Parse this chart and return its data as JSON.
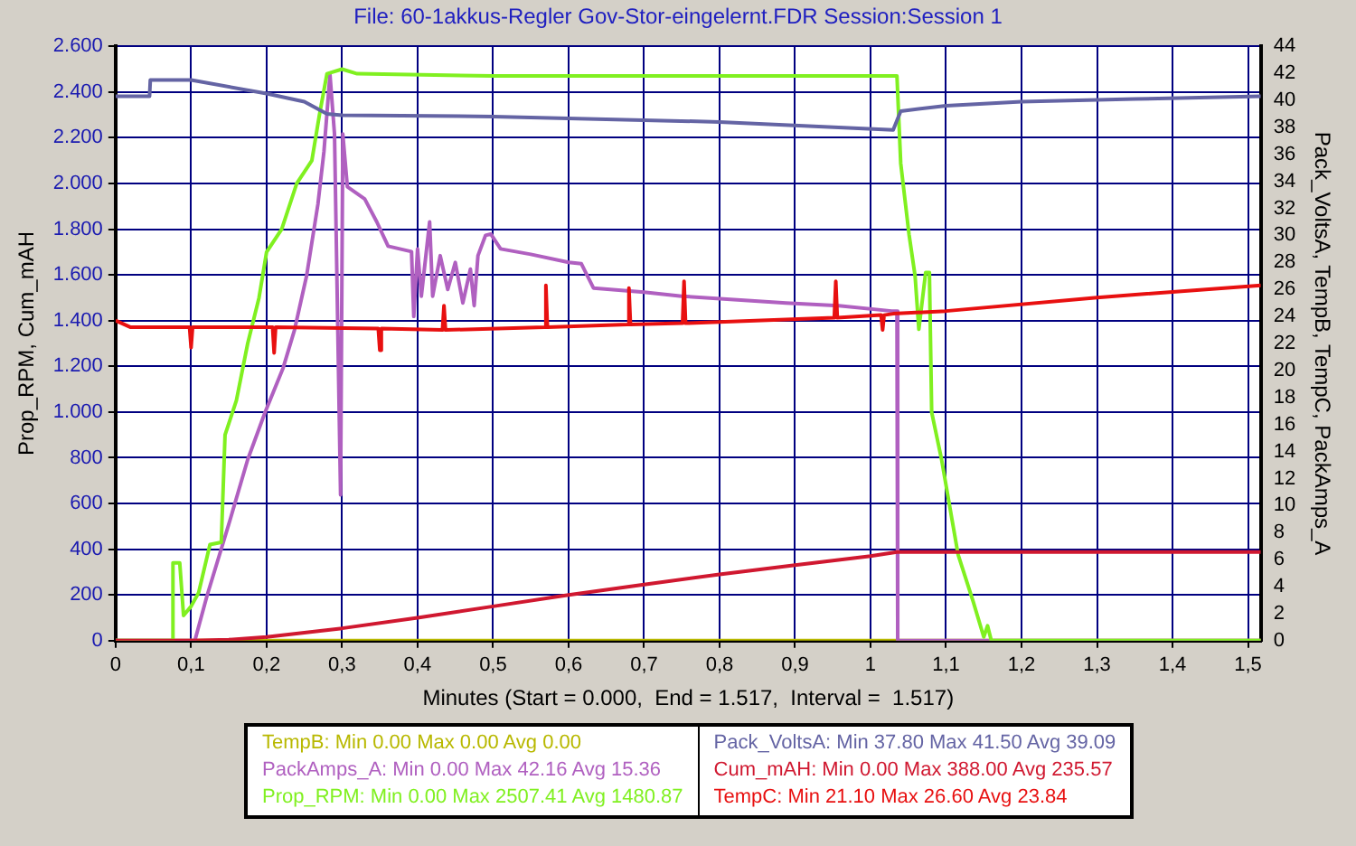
{
  "chart_data": {
    "type": "line",
    "title": "File: 60-1akkus-Regler Gov-Stor-eingelernt.FDR   Session:Session 1",
    "xlabel": "Minutes (Start = 0.000,  End = 1.517,  Interval =  1.517)",
    "ylabel": "Prop_RPM, Cum_mAH",
    "y2label": "Pack_VoltsA, TempB, TempC, PackAmps_A",
    "xlim": [
      0,
      1.517
    ],
    "xticks": [
      0,
      {
        "value": 0.1,
        "label": "0,1"
      },
      {
        "value": 0.2,
        "label": "0,2"
      },
      {
        "value": 0.3,
        "label": "0,3"
      },
      {
        "value": 0.4,
        "label": "0,4"
      },
      {
        "value": 0.5,
        "label": "0,5"
      },
      {
        "value": 0.6,
        "label": "0,6"
      },
      {
        "value": 0.7,
        "label": "0,7"
      },
      {
        "value": 0.8,
        "label": "0,8"
      },
      {
        "value": 0.9,
        "label": "0,9"
      },
      1,
      {
        "value": 1.1,
        "label": "1,1"
      },
      {
        "value": 1.2,
        "label": "1,2"
      },
      {
        "value": 1.3,
        "label": "1,3"
      },
      {
        "value": 1.4,
        "label": "1,4"
      },
      {
        "value": 1.5,
        "label": "1,5"
      }
    ],
    "ylim": [
      0,
      2600
    ],
    "yticks": [
      0,
      200,
      400,
      600,
      800,
      {
        "value": 1000,
        "label": "1.000"
      },
      {
        "value": 1200,
        "label": "1.200"
      },
      {
        "value": 1400,
        "label": "1.400"
      },
      {
        "value": 1600,
        "label": "1.600"
      },
      {
        "value": 1800,
        "label": "1.800"
      },
      {
        "value": 2000,
        "label": "2.000"
      },
      {
        "value": 2200,
        "label": "2.200"
      },
      {
        "value": 2400,
        "label": "2.400"
      },
      {
        "value": 2600,
        "label": "2.600"
      }
    ],
    "y2lim": [
      0,
      44
    ],
    "y2ticks": [
      0,
      2,
      4,
      6,
      8,
      10,
      12,
      14,
      16,
      18,
      20,
      22,
      24,
      26,
      28,
      30,
      32,
      34,
      36,
      38,
      40,
      42,
      44
    ],
    "grid": true,
    "legend": "bottom",
    "marker": "none",
    "line_style": "solid",
    "series": [
      {
        "name": "TempB:  Min 0.00   Max 0.00   Avg 0.00",
        "color": "#b8b800",
        "axis": "y2",
        "x": [
          0,
          1.517
        ],
        "values": [
          0,
          0
        ]
      },
      {
        "name": "PackAmps_A:  Min 0.00   Max 42.16   Avg 15.36",
        "color": "#b060c0",
        "axis": "y2",
        "x": [
          0,
          0.105,
          0.121,
          0.152,
          0.175,
          0.198,
          0.222,
          0.237,
          0.253,
          0.268,
          0.276,
          0.284,
          0.29,
          0.298,
          0.301,
          0.307,
          0.33,
          0.346,
          0.361,
          0.392,
          0.395,
          0.4,
          0.405,
          0.416,
          0.42,
          0.43,
          0.44,
          0.45,
          0.46,
          0.47,
          0.475,
          0.48,
          0.49,
          0.497,
          0.51,
          0.55,
          0.6,
          0.617,
          0.633,
          0.7,
          0.75,
          0.888,
          0.958,
          1.028,
          1.035,
          1.036,
          1.517
        ],
        "values": [
          0,
          0,
          3.3,
          9.0,
          13.4,
          16.9,
          20.2,
          23.0,
          27.0,
          32.3,
          36.2,
          41.9,
          37.5,
          10.8,
          37.5,
          33.6,
          32.7,
          31.0,
          29.2,
          28.8,
          24.0,
          29.0,
          25.5,
          31.0,
          25.5,
          28.5,
          26.0,
          28.0,
          25.0,
          27.5,
          24.8,
          28.5,
          30.0,
          30.1,
          29.0,
          28.6,
          28.0,
          27.9,
          26.1,
          25.8,
          25.5,
          25.0,
          24.8,
          24.4,
          24.4,
          0,
          0
        ]
      },
      {
        "name": "Prop_RPM:  Min 0.00   Max 2507.41   Avg 1480.87",
        "color": "#80f020",
        "axis": "y",
        "x": [
          0,
          0.075,
          0.076,
          0.085,
          0.09,
          0.1,
          0.11,
          0.125,
          0.14,
          0.145,
          0.16,
          0.175,
          0.19,
          0.2,
          0.22,
          0.24,
          0.26,
          0.27,
          0.28,
          0.3,
          0.32,
          0.5,
          0.8,
          1.03,
          1.035,
          1.04,
          1.051,
          1.059,
          1.064,
          1.073,
          1.078,
          1.081,
          1.094,
          1.116,
          1.136,
          1.15,
          1.155,
          1.16,
          1.517
        ],
        "values": [
          0,
          0,
          340,
          340,
          110,
          150,
          210,
          420,
          430,
          900,
          1050,
          1300,
          1500,
          1700,
          1800,
          2000,
          2100,
          2300,
          2480,
          2500,
          2480,
          2470,
          2470,
          2470,
          2470,
          2088,
          1777,
          1596,
          1362,
          1610,
          1610,
          999,
          794,
          376,
          171,
          16,
          65,
          0,
          0
        ]
      },
      {
        "name": "Pack_VoltsA:  Min 37.80   Max 41.50   Avg 39.09",
        "color": "#6464a4",
        "axis": "y2",
        "x": [
          0,
          0.045,
          0.046,
          0.1,
          0.2,
          0.25,
          0.28,
          0.3,
          0.5,
          0.8,
          1.03,
          1.04,
          1.1,
          1.2,
          1.35,
          1.517
        ],
        "values": [
          40.3,
          40.3,
          41.5,
          41.5,
          40.5,
          39.9,
          39.0,
          38.9,
          38.8,
          38.4,
          37.8,
          39.2,
          39.6,
          39.9,
          40.1,
          40.3
        ]
      },
      {
        "name": "Cum_mAH:  Min 0.00   Max 388.00   Avg 235.57",
        "color": "#d01830",
        "axis": "y",
        "x": [
          0,
          0.1,
          0.15,
          0.2,
          0.3,
          0.4,
          0.5,
          0.6,
          0.7,
          0.8,
          0.9,
          1.0,
          1.035,
          1.517
        ],
        "values": [
          0,
          0,
          4,
          16,
          54,
          100,
          150,
          200,
          245,
          290,
          330,
          370,
          388,
          388
        ]
      },
      {
        "name": "TempC:  Min 21.10   Max 26.60   Avg 23.84",
        "color": "#e81010",
        "axis": "y2",
        "x": [
          0,
          0.02,
          0.098,
          0.1,
          0.102,
          0.208,
          0.21,
          0.212,
          0.348,
          0.35,
          0.352,
          0.433,
          0.435,
          0.437,
          0.568,
          0.57,
          0.572,
          0.678,
          0.68,
          0.682,
          0.751,
          0.753,
          0.755,
          0.952,
          0.954,
          0.956,
          1.014,
          1.016,
          1.018,
          1.03,
          1.1,
          1.3,
          1.517
        ],
        "values": [
          23.7,
          23.2,
          23.2,
          21.7,
          23.2,
          23.2,
          21.3,
          23.2,
          23.1,
          21.5,
          23.1,
          23.0,
          24.8,
          23.0,
          23.2,
          26.3,
          23.2,
          23.4,
          26.1,
          23.4,
          23.5,
          26.6,
          23.5,
          23.9,
          26.6,
          23.9,
          24.1,
          23.0,
          24.1,
          24.2,
          24.4,
          25.4,
          26.3
        ]
      }
    ]
  }
}
